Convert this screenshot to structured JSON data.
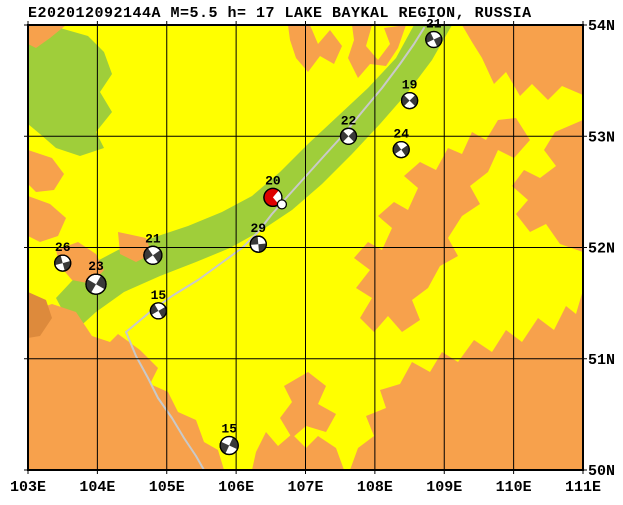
{
  "title": "E202012092144A M=5.5 h= 17 LAKE BAYKAL REGION, RUSSIA",
  "map": {
    "projection": {
      "lon_min": 103,
      "lon_max": 111,
      "lat_min": 50,
      "lat_max": 54
    },
    "axes": {
      "lon_ticks": [
        {
          "lon": 103,
          "label": "103E"
        },
        {
          "lon": 104,
          "label": "104E"
        },
        {
          "lon": 105,
          "label": "105E"
        },
        {
          "lon": 106,
          "label": "106E"
        },
        {
          "lon": 107,
          "label": "107E"
        },
        {
          "lon": 108,
          "label": "108E"
        },
        {
          "lon": 109,
          "label": "109E"
        },
        {
          "lon": 110,
          "label": "110E"
        },
        {
          "lon": 111,
          "label": "111E"
        }
      ],
      "lat_ticks": [
        {
          "lat": 54,
          "label": "54N"
        },
        {
          "lat": 53,
          "label": "53N"
        },
        {
          "lat": 52,
          "label": "52N"
        },
        {
          "lat": 51,
          "label": "51N"
        },
        {
          "lat": 50,
          "label": "50N"
        }
      ]
    },
    "colors": {
      "land_yellow": "#FFFF00",
      "terrain_orange": "#F7A14C",
      "terrain_dark_orange": "#DD8A3C",
      "rift_green": "#9FCE3A",
      "lake_gray": "#C9C9C9",
      "line_black": "#000000",
      "mechanism_shade": "#3A3A3A",
      "mechanism_white": "#FFFFFF",
      "mechanism_highlight_red": "#DD0000"
    }
  },
  "events": [
    {
      "label": "21",
      "lon": 108.85,
      "lat": 53.87,
      "r": 8,
      "rot": 20,
      "highlight": false
    },
    {
      "label": "19",
      "lon": 108.5,
      "lat": 53.32,
      "r": 8,
      "rot": 0,
      "highlight": false
    },
    {
      "label": "22",
      "lon": 107.62,
      "lat": 53.0,
      "r": 8,
      "rot": 0,
      "highlight": false
    },
    {
      "label": "24",
      "lon": 108.38,
      "lat": 52.88,
      "r": 8,
      "rot": 10,
      "highlight": false
    },
    {
      "label": "20",
      "lon": 106.53,
      "lat": 52.45,
      "r": 9,
      "rot": 0,
      "highlight": true
    },
    {
      "label": "29",
      "lon": 106.32,
      "lat": 52.03,
      "r": 8,
      "rot": 40,
      "highlight": false
    },
    {
      "label": "21",
      "lon": 104.8,
      "lat": 51.93,
      "r": 9,
      "rot": 10,
      "highlight": false
    },
    {
      "label": "26",
      "lon": 103.5,
      "lat": 51.86,
      "r": 8,
      "rot": 30,
      "highlight": false
    },
    {
      "label": "23",
      "lon": 103.98,
      "lat": 51.67,
      "r": 10,
      "rot": -15,
      "highlight": false
    },
    {
      "label": "15",
      "lon": 104.88,
      "lat": 51.43,
      "r": 8,
      "rot": 15,
      "highlight": false
    },
    {
      "label": "15",
      "lon": 105.9,
      "lat": 50.22,
      "r": 9,
      "rot": -20,
      "highlight": false
    }
  ]
}
